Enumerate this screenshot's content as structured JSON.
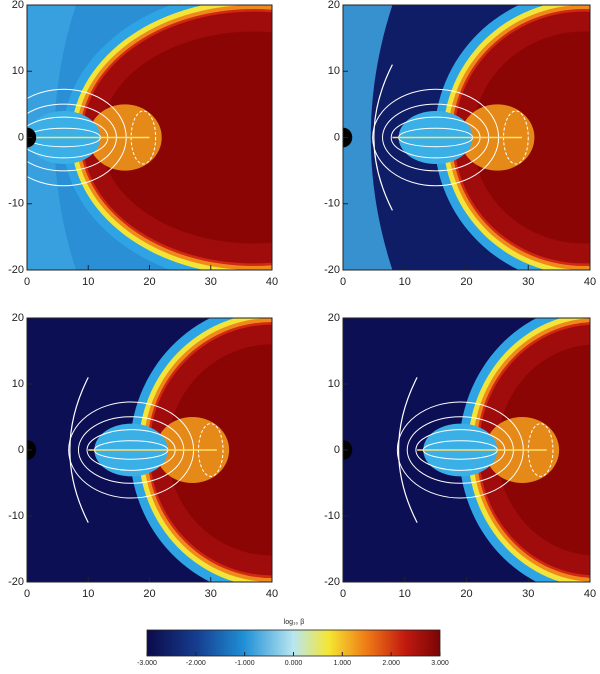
{
  "chart_data": [
    {
      "type": "heatmap",
      "xlim": [
        0,
        40
      ],
      "ylim": [
        -20,
        20
      ],
      "xticks": [
        0,
        10,
        20,
        30,
        40
      ],
      "yticks": [
        -20,
        -10,
        0,
        10,
        20
      ]
    },
    {
      "type": "heatmap",
      "xlim": [
        0,
        40
      ],
      "ylim": [
        -20,
        20
      ],
      "xticks": [
        0,
        10,
        20,
        30,
        40
      ],
      "yticks": [
        -20,
        -10,
        0,
        10,
        20
      ]
    },
    {
      "type": "heatmap",
      "xlim": [
        0,
        40
      ],
      "ylim": [
        -20,
        20
      ],
      "xticks": [
        0,
        10,
        20,
        30,
        40
      ],
      "yticks": [
        -20,
        -10,
        0,
        10,
        20
      ]
    },
    {
      "type": "heatmap",
      "xlim": [
        0,
        40
      ],
      "ylim": [
        -20,
        20
      ],
      "xticks": [
        0,
        10,
        20,
        30,
        40
      ],
      "yticks": [
        -20,
        -10,
        0,
        10,
        20
      ]
    }
  ],
  "colorbar": {
    "title": "log₁₀ β",
    "lim": [
      -3,
      3
    ],
    "ticks": [
      {
        "value": -3,
        "label": "-3.000"
      },
      {
        "value": -2,
        "label": "-2.000"
      },
      {
        "value": -1,
        "label": "-1.000"
      },
      {
        "value": 0,
        "label": "0.000"
      },
      {
        "value": 1,
        "label": "1.000"
      },
      {
        "value": 2,
        "label": "2.000"
      },
      {
        "value": 3,
        "label": "3.000"
      }
    ]
  }
}
